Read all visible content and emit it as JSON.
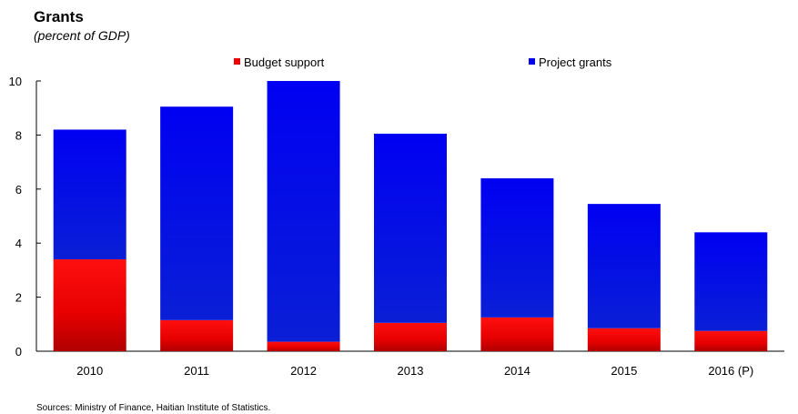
{
  "title": "Grants",
  "subtitle": "(percent of GDP)",
  "source": "Sources: Ministry of Finance, Haitian Institute of Statistics.",
  "colors": {
    "budget_support": "#ee0000",
    "project_grants": "#0000ee"
  },
  "chart_data": {
    "type": "bar",
    "stacked": true,
    "categories": [
      "2010",
      "2011",
      "2012",
      "2013",
      "2014",
      "2015",
      "2016 (P)"
    ],
    "series": [
      {
        "name": "Budget support",
        "values": [
          3.4,
          1.15,
          0.35,
          1.05,
          1.25,
          0.85,
          0.75
        ]
      },
      {
        "name": "Project grants",
        "values": [
          4.8,
          7.9,
          9.65,
          7.0,
          5.15,
          4.6,
          3.65
        ]
      }
    ],
    "ylim": [
      0,
      10
    ],
    "yticks": [
      "0",
      "2",
      "4",
      "6",
      "8",
      "10"
    ],
    "grid": false,
    "legend_position": "top"
  }
}
